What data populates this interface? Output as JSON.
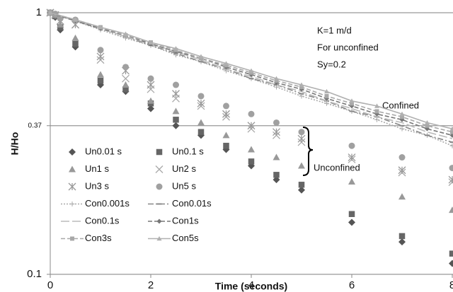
{
  "chart_data": {
    "type": "scatter",
    "x_label": "Time (seconds)",
    "y_label": "H/Ho",
    "xlim": [
      0,
      8
    ],
    "xticks": [
      0,
      2,
      4,
      6,
      8
    ],
    "ylim": [
      0.1,
      1
    ],
    "yticks": [
      0.1,
      0.37,
      1
    ],
    "log_y": true,
    "grid": true,
    "annotations": [
      "K=1 m/d",
      "For unconfined",
      "Sy=0.2"
    ],
    "confined_label": "Confined",
    "unconfined_label": "Unconfined",
    "legend": "lower left",
    "series": [
      {
        "name": "Un0.01 s",
        "color": "#555555",
        "marker": "diamond",
        "x": [
          0,
          0.1,
          0.2,
          0.5,
          1,
          1.5,
          2,
          2.5,
          3,
          3.5,
          4,
          4.5,
          5,
          6,
          7,
          8
        ],
        "values": [
          1,
          0.96,
          0.86,
          0.74,
          0.53,
          0.5,
          0.43,
          0.37,
          0.34,
          0.3,
          0.26,
          0.23,
          0.21,
          0.158,
          0.133,
          0.11
        ]
      },
      {
        "name": "Un0.1 s",
        "color": "#666666",
        "marker": "square",
        "x": [
          0,
          0.1,
          0.2,
          0.5,
          1,
          1.5,
          2,
          2.5,
          3,
          3.5,
          4,
          4.5,
          5,
          6,
          7,
          8
        ],
        "values": [
          1,
          0.97,
          0.88,
          0.76,
          0.55,
          0.51,
          0.45,
          0.39,
          0.35,
          0.31,
          0.27,
          0.24,
          0.22,
          0.17,
          0.14,
          0.12
        ]
      },
      {
        "name": "Un1 s",
        "color": "#999999",
        "marker": "triangle",
        "x": [
          0,
          0.1,
          0.2,
          0.5,
          1,
          1.5,
          2,
          2.5,
          3,
          3.5,
          4,
          4.5,
          5,
          6,
          7,
          8
        ],
        "values": [
          1,
          0.98,
          0.9,
          0.8,
          0.58,
          0.53,
          0.46,
          0.42,
          0.38,
          0.34,
          0.3,
          0.28,
          0.26,
          0.226,
          0.198,
          0.176
        ]
      },
      {
        "name": "Un2 s",
        "color": "#aaaaaa",
        "marker": "x",
        "x": [
          0,
          0.1,
          0.2,
          0.5,
          1,
          1.5,
          2,
          2.5,
          3,
          3.5,
          4,
          4.5,
          5,
          6,
          7,
          8
        ],
        "values": [
          1,
          0.98,
          0.93,
          0.9,
          0.66,
          0.56,
          0.51,
          0.47,
          0.44,
          0.4,
          0.36,
          0.34,
          0.32,
          0.275,
          0.245,
          0.225
        ]
      },
      {
        "name": "Un3 s",
        "color": "#999999",
        "marker": "asterisk",
        "x": [
          0,
          0.1,
          0.2,
          0.5,
          1,
          1.5,
          2,
          2.5,
          3,
          3.5,
          4,
          4.5,
          5,
          6,
          7,
          8
        ],
        "values": [
          1,
          0.98,
          0.93,
          0.9,
          0.68,
          0.6,
          0.53,
          0.49,
          0.45,
          0.41,
          0.37,
          0.35,
          0.33,
          0.28,
          0.25,
          0.23
        ]
      },
      {
        "name": "Un5 s",
        "color": "#a0a0a0",
        "marker": "circle",
        "x": [
          0,
          0.1,
          0.2,
          0.5,
          1,
          1.5,
          2,
          2.5,
          3,
          3.5,
          4,
          4.5,
          5,
          6,
          7,
          8
        ],
        "values": [
          1,
          0.99,
          0.95,
          0.94,
          0.72,
          0.62,
          0.56,
          0.53,
          0.48,
          0.44,
          0.41,
          0.38,
          0.35,
          0.31,
          0.28,
          0.255
        ]
      },
      {
        "name": "Con0.001s",
        "color": "#aaaaaa",
        "marker": "plus",
        "dash": "2 2",
        "x": [
          0,
          0.5,
          1,
          1.5,
          2,
          2.5,
          3,
          3.5,
          4,
          4.5,
          5,
          5.5,
          6,
          6.5,
          7,
          7.5,
          8
        ],
        "values": [
          1,
          0.93,
          0.86,
          0.8,
          0.75,
          0.69,
          0.65,
          0.6,
          0.56,
          0.52,
          0.48,
          0.45,
          0.42,
          0.39,
          0.36,
          0.34,
          0.31
        ]
      },
      {
        "name": "Con0.01s",
        "color": "#888888",
        "marker": "dash",
        "dash": "8 3 2 3",
        "x": [
          0,
          0.5,
          1,
          1.5,
          2,
          2.5,
          3,
          3.5,
          4,
          4.5,
          5,
          5.5,
          6,
          6.5,
          7,
          7.5,
          8
        ],
        "values": [
          1,
          0.93,
          0.87,
          0.81,
          0.75,
          0.7,
          0.65,
          0.61,
          0.56,
          0.53,
          0.49,
          0.46,
          0.42,
          0.4,
          0.37,
          0.34,
          0.32
        ]
      },
      {
        "name": "Con0.1s",
        "color": "#bbbbbb",
        "marker": "none",
        "dash": "12 4",
        "x": [
          0,
          0.5,
          1,
          1.5,
          2,
          2.5,
          3,
          3.5,
          4,
          4.5,
          5,
          5.5,
          6,
          6.5,
          7,
          7.5,
          8
        ],
        "values": [
          1,
          0.93,
          0.87,
          0.81,
          0.76,
          0.71,
          0.66,
          0.61,
          0.57,
          0.53,
          0.5,
          0.46,
          0.43,
          0.4,
          0.38,
          0.35,
          0.33
        ]
      },
      {
        "name": "Con1s",
        "color": "#777777",
        "marker": "diamond",
        "dash": "6 3",
        "x": [
          0,
          0.5,
          1,
          1.5,
          2,
          2.5,
          3,
          3.5,
          4,
          4.5,
          5,
          5.5,
          6,
          6.5,
          7,
          7.5,
          8
        ],
        "values": [
          1,
          0.93,
          0.87,
          0.82,
          0.76,
          0.71,
          0.67,
          0.62,
          0.58,
          0.54,
          0.51,
          0.47,
          0.44,
          0.41,
          0.39,
          0.36,
          0.34
        ]
      },
      {
        "name": "Con3s",
        "color": "#a8a8a8",
        "marker": "square",
        "dash": "6 3",
        "x": [
          0,
          0.5,
          1,
          1.5,
          2,
          2.5,
          3,
          3.5,
          4,
          4.5,
          5,
          5.5,
          6,
          6.5,
          7,
          7.5,
          8
        ],
        "values": [
          1,
          0.94,
          0.88,
          0.82,
          0.77,
          0.72,
          0.67,
          0.63,
          0.59,
          0.55,
          0.52,
          0.48,
          0.45,
          0.42,
          0.4,
          0.37,
          0.35
        ]
      },
      {
        "name": "Con5s",
        "color": "#b0b0b0",
        "marker": "triangle",
        "dash": "none",
        "x": [
          0,
          0.5,
          1,
          1.5,
          2,
          2.5,
          3,
          3.5,
          4,
          4.5,
          5,
          5.5,
          6,
          6.5,
          7,
          7.5,
          8
        ],
        "values": [
          1,
          0.94,
          0.88,
          0.83,
          0.77,
          0.73,
          0.68,
          0.64,
          0.6,
          0.56,
          0.53,
          0.5,
          0.46,
          0.44,
          0.41,
          0.38,
          0.36
        ]
      }
    ]
  }
}
